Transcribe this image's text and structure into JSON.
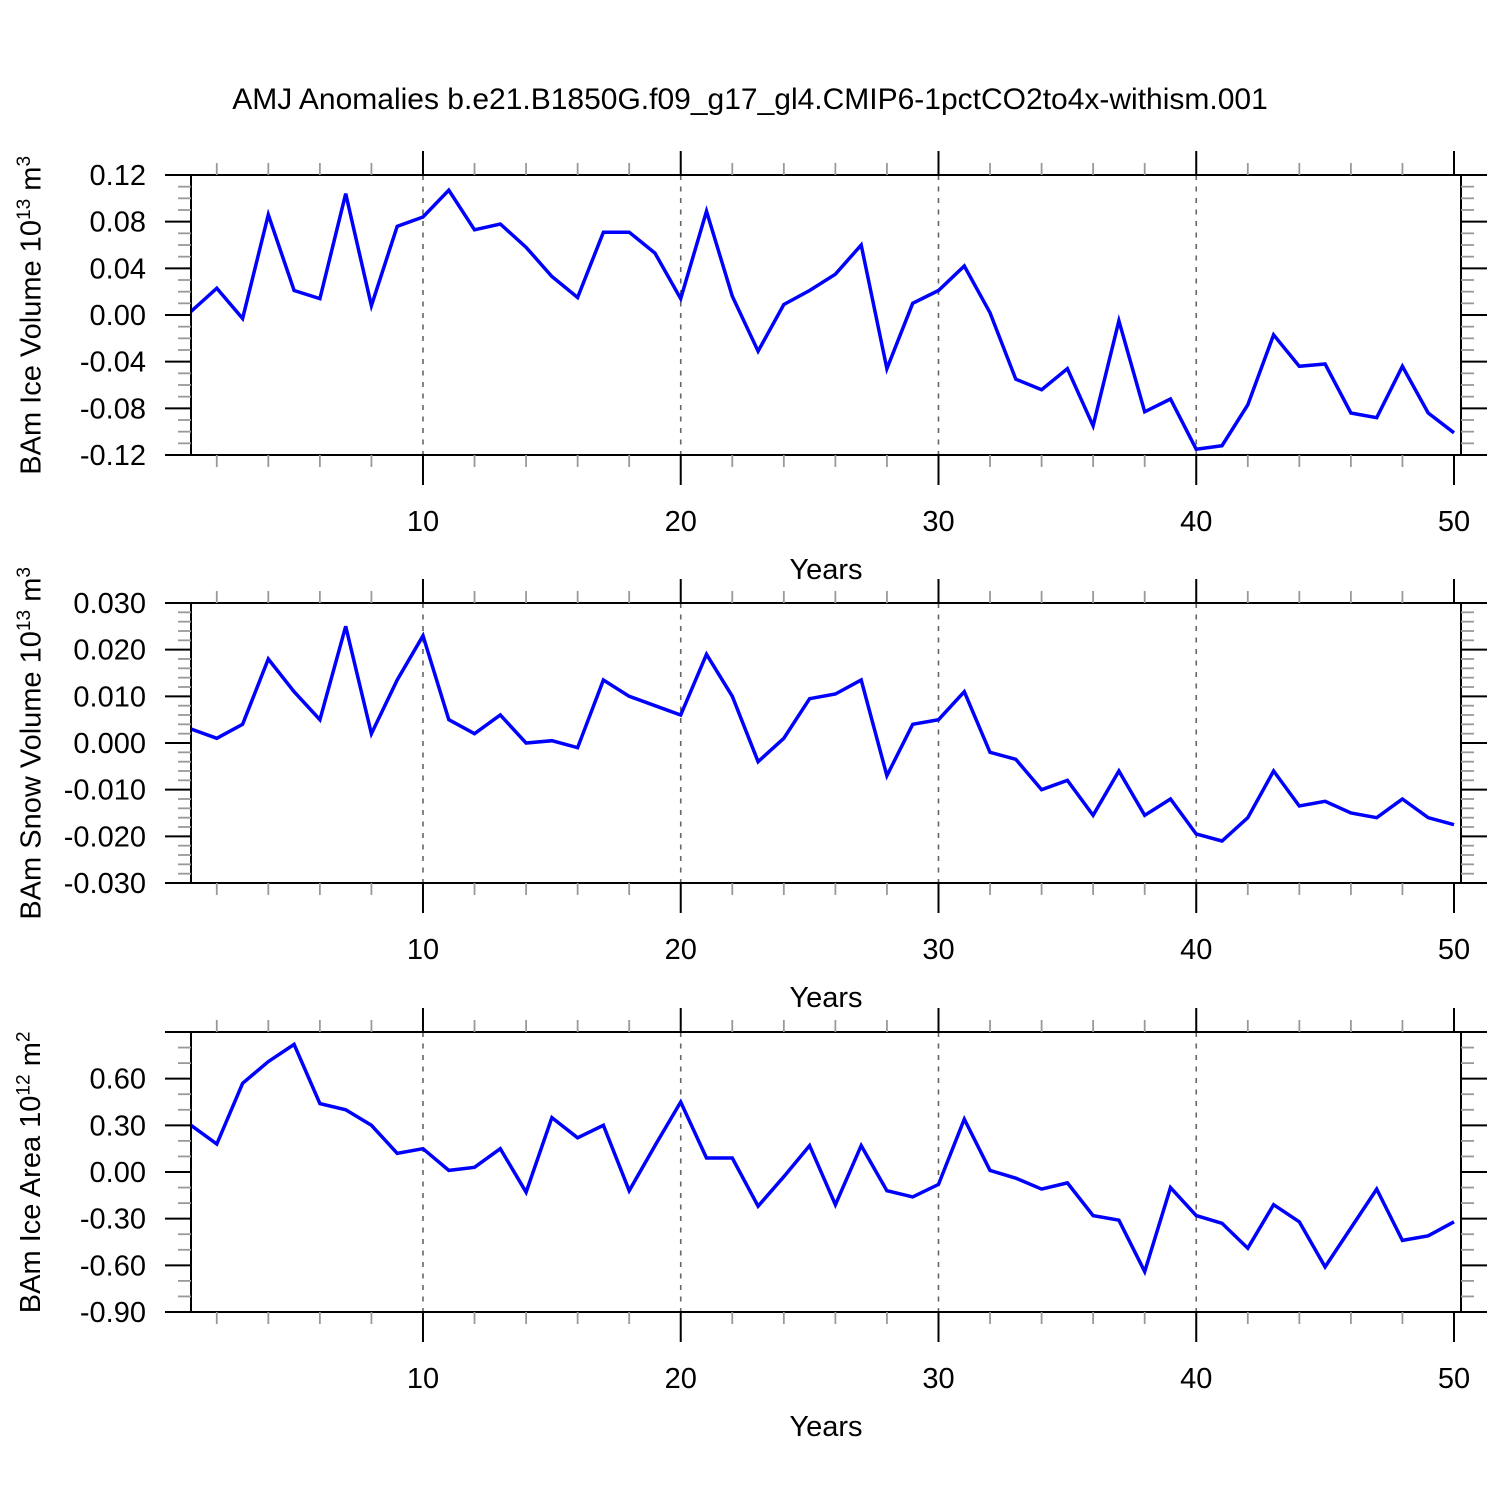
{
  "title": "AMJ Anomalies b.e21.B1850G.f09_g17_gl4.CMIP6-1pctCO2to4x-withism.001",
  "x_axis": {
    "label": "Years",
    "major_tick_labels": [
      "10",
      "20",
      "30",
      "40",
      "50"
    ],
    "major_tick_values": [
      10,
      20,
      30,
      40,
      50
    ],
    "minor_tick_step": 2,
    "grid_years": [
      10,
      20,
      30,
      40
    ],
    "range": [
      1,
      50
    ]
  },
  "style": {
    "line_color": "#0000ff",
    "axis_color": "#000000",
    "minor_tick_color": "#999999",
    "grid_color": "#666666"
  },
  "panels": [
    {
      "ylabel": {
        "base": "BAm Ice Volume 10",
        "base_exp": "13",
        "unit": " m",
        "unit_exp": "3"
      },
      "ylim": [
        -0.12,
        0.12
      ],
      "ymajor_step": 0.04,
      "yminor_step": 0.01,
      "ytick_labels": [
        "0.12",
        "0.08",
        "0.04",
        "0.00",
        "-0.04",
        "-0.08",
        "-0.12"
      ],
      "series_index": 0
    },
    {
      "ylabel": {
        "base": "BAm Snow Volume 10",
        "base_exp": "13",
        "unit": " m",
        "unit_exp": "3"
      },
      "ylim": [
        -0.03,
        0.03
      ],
      "ymajor_step": 0.01,
      "yminor_step": 0.002,
      "ytick_labels": [
        "0.030",
        "0.020",
        "0.010",
        "0.000",
        "-0.010",
        "-0.020",
        "-0.030"
      ],
      "series_index": 1
    },
    {
      "ylabel": {
        "base": "BAm Ice Area 10",
        "base_exp": "12",
        "unit": " m",
        "unit_exp": "2"
      },
      "ylim": [
        -0.9,
        0.9
      ],
      "ymajor_step": 0.3,
      "yminor_step": 0.1,
      "ytick_labels": [
        "0.60",
        "0.30",
        "0.00",
        "-0.30",
        "-0.60",
        "-0.90"
      ],
      "series_index": 2
    }
  ],
  "chart_data": {
    "type": "line",
    "title": "AMJ Anomalies b.e21.B1850G.f09_g17_gl4.CMIP6-1pctCO2to4x-withism.001",
    "xlabel": "Years",
    "x_range": [
      1,
      50
    ],
    "grid": "vertical-dashed-at-10-20-30-40",
    "legend": "none",
    "x": [
      1,
      2,
      3,
      4,
      5,
      6,
      7,
      8,
      9,
      10,
      11,
      12,
      13,
      14,
      15,
      16,
      17,
      18,
      19,
      20,
      21,
      22,
      23,
      24,
      25,
      26,
      27,
      28,
      29,
      30,
      31,
      32,
      33,
      34,
      35,
      36,
      37,
      38,
      39,
      40,
      41,
      42,
      43,
      44,
      45,
      46,
      47,
      48,
      49,
      50
    ],
    "series": [
      {
        "name": "BAm Ice Volume 10^13 m^3",
        "ylim": [
          -0.12,
          0.12
        ],
        "values": [
          0.003,
          0.023,
          -0.003,
          0.086,
          0.021,
          0.014,
          0.104,
          0.008,
          0.076,
          0.084,
          0.107,
          0.073,
          0.078,
          0.058,
          0.033,
          0.015,
          0.071,
          0.071,
          0.053,
          0.014,
          0.089,
          0.016,
          -0.031,
          0.009,
          0.021,
          0.035,
          0.06,
          -0.046,
          0.01,
          0.021,
          0.042,
          0.002,
          -0.055,
          -0.064,
          -0.046,
          -0.095,
          -0.005,
          -0.083,
          -0.072,
          -0.115,
          -0.112,
          -0.077,
          -0.017,
          -0.044,
          -0.042,
          -0.084,
          -0.088,
          -0.044,
          -0.084,
          -0.101
        ]
      },
      {
        "name": "BAm Snow Volume 10^13 m^3",
        "ylim": [
          -0.03,
          0.03
        ],
        "values": [
          0.003,
          0.001,
          0.004,
          0.018,
          0.011,
          0.005,
          0.025,
          0.002,
          0.0135,
          0.023,
          0.005,
          0.002,
          0.006,
          0.0,
          0.0005,
          -0.001,
          0.0135,
          0.01,
          0.008,
          0.006,
          0.019,
          0.01,
          -0.004,
          0.001,
          0.0095,
          0.0105,
          0.0135,
          -0.007,
          0.004,
          0.005,
          0.011,
          -0.002,
          -0.0035,
          -0.01,
          -0.008,
          -0.0155,
          -0.006,
          -0.0155,
          -0.012,
          -0.0195,
          -0.021,
          -0.016,
          -0.006,
          -0.0135,
          -0.0125,
          -0.015,
          -0.016,
          -0.012,
          -0.016,
          -0.0175
        ]
      },
      {
        "name": "BAm Ice Area 10^12 m^2",
        "ylim": [
          -0.9,
          0.9
        ],
        "values": [
          0.3,
          0.18,
          0.57,
          0.71,
          0.82,
          0.44,
          0.4,
          0.3,
          0.12,
          0.15,
          0.01,
          0.03,
          0.15,
          -0.13,
          0.35,
          0.22,
          0.3,
          -0.12,
          0.17,
          0.45,
          0.09,
          0.09,
          -0.22,
          -0.03,
          0.17,
          -0.21,
          0.17,
          -0.12,
          -0.16,
          -0.08,
          0.34,
          0.01,
          -0.04,
          -0.11,
          -0.07,
          -0.28,
          -0.31,
          -0.64,
          -0.1,
          -0.28,
          -0.33,
          -0.49,
          -0.21,
          -0.32,
          -0.61,
          -0.36,
          -0.11,
          -0.44,
          -0.41,
          -0.32
        ]
      }
    ]
  }
}
